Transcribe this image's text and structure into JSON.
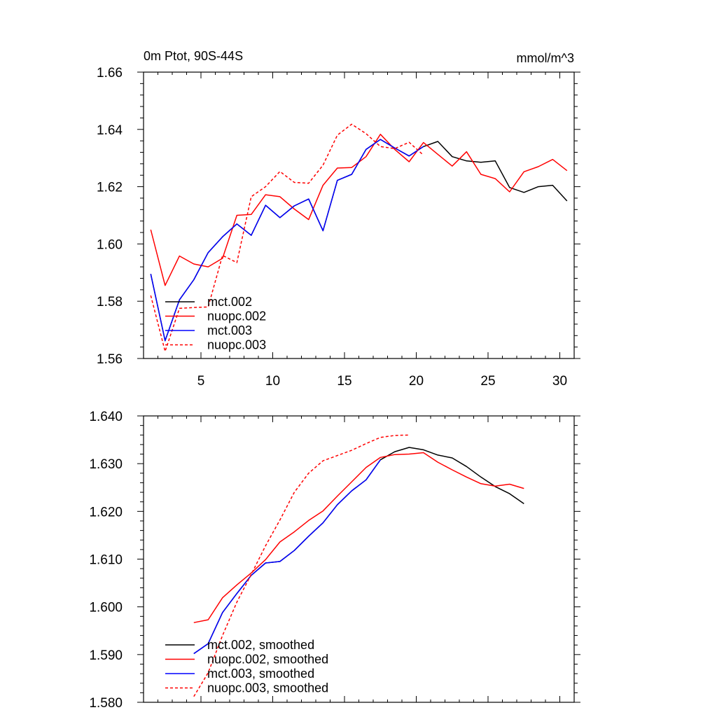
{
  "chart_data": [
    {
      "type": "line",
      "title_left": "0m Ptot, 90S-44S",
      "title_right": "mmol/m^3",
      "xlim": [
        1,
        31
      ],
      "ylim": [
        1.56,
        1.66
      ],
      "x_ticks": [
        5,
        10,
        15,
        20,
        25,
        30
      ],
      "x_tick_labels": [
        "5",
        "10",
        "15",
        "20",
        "25",
        "30"
      ],
      "y_ticks": [
        1.56,
        1.58,
        1.6,
        1.62,
        1.64,
        1.66
      ],
      "y_tick_labels": [
        "1.56",
        "1.58",
        "1.60",
        "1.62",
        "1.64",
        "1.66"
      ],
      "legend_position": "bottom-left",
      "series": [
        {
          "name": "mct.002",
          "color": "#000000",
          "dash": "solid",
          "x": [
            1.5,
            2.5,
            3.5,
            4.5,
            5.5,
            6.5,
            7.5,
            8.5,
            9.5,
            10.5,
            11.5,
            12.5,
            13.5,
            14.5,
            15.5,
            16.5,
            17.5,
            18.5,
            19.5,
            20.5,
            21.5,
            22.5,
            23.5,
            24.5,
            25.5,
            26.5,
            27.5,
            28.5,
            29.5,
            30.5
          ],
          "y": [
            1.5895,
            1.5662,
            1.5805,
            1.5875,
            1.597,
            1.6025,
            1.607,
            1.603,
            1.6135,
            1.6092,
            1.6133,
            1.6157,
            1.6046,
            1.6222,
            1.6243,
            1.633,
            1.6365,
            1.6335,
            1.6307,
            1.634,
            1.6358,
            1.6305,
            1.629,
            1.6285,
            1.629,
            1.6197,
            1.618,
            1.62,
            1.6205,
            1.615
          ]
        },
        {
          "name": "nuopc.002",
          "color": "#ff0000",
          "dash": "solid",
          "x": [
            1.5,
            2.5,
            3.5,
            4.5,
            5.5,
            6.5,
            7.5,
            8.5,
            9.5,
            10.5,
            11.5,
            12.5,
            13.5,
            14.5,
            15.5,
            16.5,
            17.5,
            18.5,
            19.5,
            20.5,
            21.5,
            22.5,
            23.5,
            24.5,
            25.5,
            26.5,
            27.5,
            28.5,
            29.5,
            30.5
          ],
          "y": [
            1.605,
            1.5855,
            1.5958,
            1.593,
            1.592,
            1.595,
            1.61,
            1.6103,
            1.6172,
            1.6165,
            1.6122,
            1.6085,
            1.6205,
            1.6265,
            1.6267,
            1.6305,
            1.6383,
            1.633,
            1.6287,
            1.6354,
            1.6313,
            1.6272,
            1.6322,
            1.6243,
            1.6228,
            1.6182,
            1.6252,
            1.627,
            1.6295,
            1.6256
          ]
        },
        {
          "name": "mct.003",
          "color": "#0000ff",
          "dash": "solid",
          "x": [
            1.5,
            2.5,
            3.5,
            4.5,
            5.5,
            6.5,
            7.5,
            8.5,
            9.5,
            10.5,
            11.5,
            12.5,
            13.5,
            14.5,
            15.5,
            16.5,
            17.5,
            18.5,
            19.5,
            20.5
          ],
          "y": [
            1.5895,
            1.5662,
            1.5805,
            1.5875,
            1.597,
            1.6025,
            1.607,
            1.603,
            1.6135,
            1.6092,
            1.6133,
            1.6157,
            1.6046,
            1.6222,
            1.6243,
            1.633,
            1.6365,
            1.6335,
            1.6307,
            1.634
          ]
        },
        {
          "name": "nuopc.003",
          "color": "#ff0000",
          "dash": "dashed",
          "x": [
            1.5,
            2.5,
            3.5,
            4.5,
            5.5,
            6.5,
            7.5,
            8.5,
            9.5,
            10.5,
            11.5,
            12.5,
            13.5,
            14.5,
            15.5,
            16.5,
            17.5,
            18.5,
            19.5,
            20.5
          ],
          "y": [
            1.582,
            1.5625,
            1.5775,
            1.5778,
            1.578,
            1.596,
            1.5935,
            1.6165,
            1.62,
            1.6253,
            1.6215,
            1.6212,
            1.6275,
            1.638,
            1.6418,
            1.6385,
            1.634,
            1.6333,
            1.6355,
            1.631
          ]
        }
      ]
    },
    {
      "type": "line",
      "xlim": [
        1,
        31
      ],
      "ylim": [
        1.58,
        1.64
      ],
      "x_ticks": [
        5,
        10,
        15,
        20,
        25,
        30
      ],
      "y_ticks": [
        1.58,
        1.59,
        1.6,
        1.61,
        1.62,
        1.63,
        1.64
      ],
      "y_tick_labels": [
        "1.580",
        "1.590",
        "1.600",
        "1.610",
        "1.620",
        "1.630",
        "1.640"
      ],
      "legend_position": "bottom-left",
      "series": [
        {
          "name": "mct.002, smoothed",
          "color": "#000000",
          "dash": "solid",
          "x": [
            4.5,
            5.5,
            6.5,
            7.5,
            8.5,
            9.5,
            10.5,
            11.5,
            12.5,
            13.5,
            14.5,
            15.5,
            16.5,
            17.5,
            18.5,
            19.5,
            20.5,
            21.5,
            22.5,
            23.5,
            24.5,
            25.5,
            26.5,
            27.5
          ],
          "y": [
            1.5902,
            1.5923,
            1.5988,
            1.6028,
            1.6066,
            1.6092,
            1.6095,
            1.6118,
            1.6148,
            1.6176,
            1.6214,
            1.6243,
            1.6266,
            1.6308,
            1.6325,
            1.6334,
            1.6329,
            1.6318,
            1.6312,
            1.6294,
            1.6272,
            1.6252,
            1.6237,
            1.6216
          ]
        },
        {
          "name": "nuopc.002, smoothed",
          "color": "#ff0000",
          "dash": "solid",
          "x": [
            4.5,
            5.5,
            6.5,
            7.5,
            8.5,
            9.5,
            10.5,
            11.5,
            12.5,
            13.5,
            14.5,
            15.5,
            16.5,
            17.5,
            18.5,
            19.5,
            20.5,
            21.5,
            22.5,
            23.5,
            24.5,
            25.5,
            26.5,
            27.5
          ],
          "y": [
            1.5967,
            1.5973,
            1.6019,
            1.6046,
            1.6071,
            1.6099,
            1.6136,
            1.6157,
            1.6181,
            1.6201,
            1.6232,
            1.6262,
            1.6292,
            1.6313,
            1.6319,
            1.632,
            1.6323,
            1.6303,
            1.6287,
            1.6272,
            1.6258,
            1.6253,
            1.6257,
            1.6248
          ]
        },
        {
          "name": "mct.003, smoothed",
          "color": "#0000ff",
          "dash": "solid",
          "x": [
            4.5,
            5.5,
            6.5,
            7.5,
            8.5,
            9.5,
            10.5,
            11.5,
            12.5,
            13.5,
            14.5,
            15.5,
            16.5,
            17.5
          ],
          "y": [
            1.5902,
            1.5923,
            1.5988,
            1.6028,
            1.6066,
            1.6092,
            1.6095,
            1.6118,
            1.6148,
            1.6176,
            1.6214,
            1.6243,
            1.6266,
            1.6308
          ]
        },
        {
          "name": "nuopc.003, smoothed",
          "color": "#ff0000",
          "dash": "dashed",
          "x": [
            4.5,
            5.5,
            6.5,
            7.5,
            8.5,
            9.5,
            10.5,
            11.5,
            12.5,
            13.5,
            14.5,
            15.5,
            16.5,
            17.5,
            18.5,
            19.5
          ],
          "y": [
            1.5812,
            1.5862,
            1.594,
            1.601,
            1.6068,
            1.6128,
            1.6182,
            1.624,
            1.628,
            1.6306,
            1.6317,
            1.6328,
            1.6342,
            1.6355,
            1.6359,
            1.636
          ]
        }
      ]
    }
  ]
}
